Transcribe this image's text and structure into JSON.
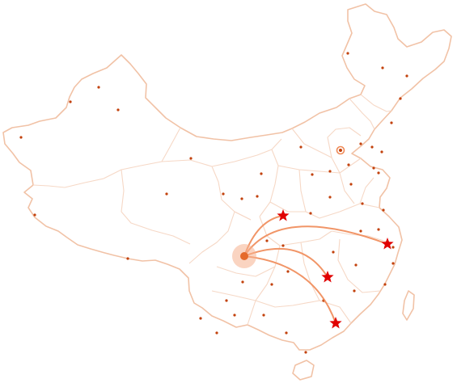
{
  "map": {
    "colors": {
      "border": "#f1c2a6",
      "province": "#f6d8c6",
      "city_dot": "#c2410c",
      "route": "#f08a57",
      "origin_halo": "#f6b08e",
      "origin": "#e56a2a",
      "destination_star": "#e00000",
      "capital_ring": "#f08a57"
    },
    "icons": {
      "origin": "pulse-dot-icon",
      "destination": "star-icon",
      "capital": "ring-dot-icon"
    },
    "routes": {
      "origin": "origin-southwest",
      "destinations": [
        "destination-central",
        "destination-east-coast",
        "destination-south-central",
        "destination-south-coast"
      ]
    }
  }
}
